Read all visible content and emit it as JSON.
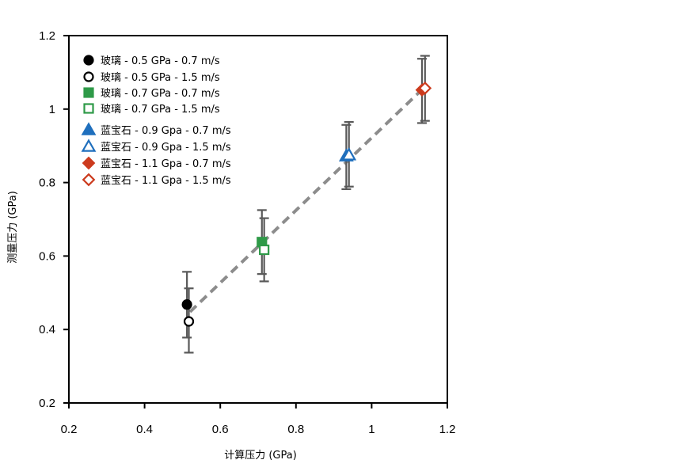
{
  "chart_data": {
    "type": "scatter",
    "xlabel": "计算压力 (GPa)",
    "ylabel": "测量压力 (GPa)",
    "xlim": [
      0.2,
      1.2
    ],
    "ylim": [
      0.2,
      1.2
    ],
    "x_ticks": [
      "0.2",
      "0.4",
      "0.6",
      "0.8",
      "1",
      "1.2"
    ],
    "y_ticks": [
      "0.2",
      "0.4",
      "0.6",
      "0.8",
      "1",
      "1.2"
    ],
    "grid": false,
    "legend_position": "top-left",
    "series": [
      {
        "name": "玻璃 - 0.5 GPa - 0.7 m/s",
        "marker": "circle",
        "filled": true,
        "color": "#000000",
        "x": 0.512,
        "y": 0.468,
        "err_low": 0.378,
        "err_high": 0.557
      },
      {
        "name": "玻璃 - 0.5 GPa - 1.5 m/s",
        "marker": "circle",
        "filled": false,
        "color": "#000000",
        "x": 0.517,
        "y": 0.422,
        "err_low": 0.337,
        "err_high": 0.512
      },
      {
        "name": "玻璃 - 0.7 GPa - 0.7 m/s",
        "marker": "square",
        "filled": true,
        "color": "#2e9a48",
        "x": 0.71,
        "y": 0.638,
        "err_low": 0.551,
        "err_high": 0.725
      },
      {
        "name": "玻璃 - 0.7 GPa - 1.5 m/s",
        "marker": "square",
        "filled": false,
        "color": "#2e9a48",
        "x": 0.716,
        "y": 0.617,
        "err_low": 0.531,
        "err_high": 0.703
      },
      {
        "name": "蓝宝石 - 0.9 Gpa - 0.7 m/s",
        "marker": "triangle",
        "filled": true,
        "color": "#1f6fbd",
        "x": 0.933,
        "y": 0.872,
        "err_low": 0.782,
        "err_high": 0.957
      },
      {
        "name": "蓝宝石 - 0.9 Gpa - 1.5 m/s",
        "marker": "triangle",
        "filled": false,
        "color": "#1f6fbd",
        "x": 0.94,
        "y": 0.875,
        "err_low": 0.789,
        "err_high": 0.965
      },
      {
        "name": "蓝宝石 - 1.1 Gpa - 0.7 m/s",
        "marker": "diamond",
        "filled": true,
        "color": "#cc3b1e",
        "x": 1.133,
        "y": 1.052,
        "err_low": 0.962,
        "err_high": 1.137
      },
      {
        "name": "蓝宝石 - 1.1 Gpa - 1.5 m/s",
        "marker": "diamond",
        "filled": false,
        "color": "#cc3b1e",
        "x": 1.141,
        "y": 1.057,
        "err_low": 0.968,
        "err_high": 1.145
      }
    ],
    "trendline": {
      "x": [
        0.52,
        1.14
      ],
      "y": [
        0.448,
        1.06
      ],
      "style": "dashed",
      "color": "#8c8c8c"
    }
  }
}
